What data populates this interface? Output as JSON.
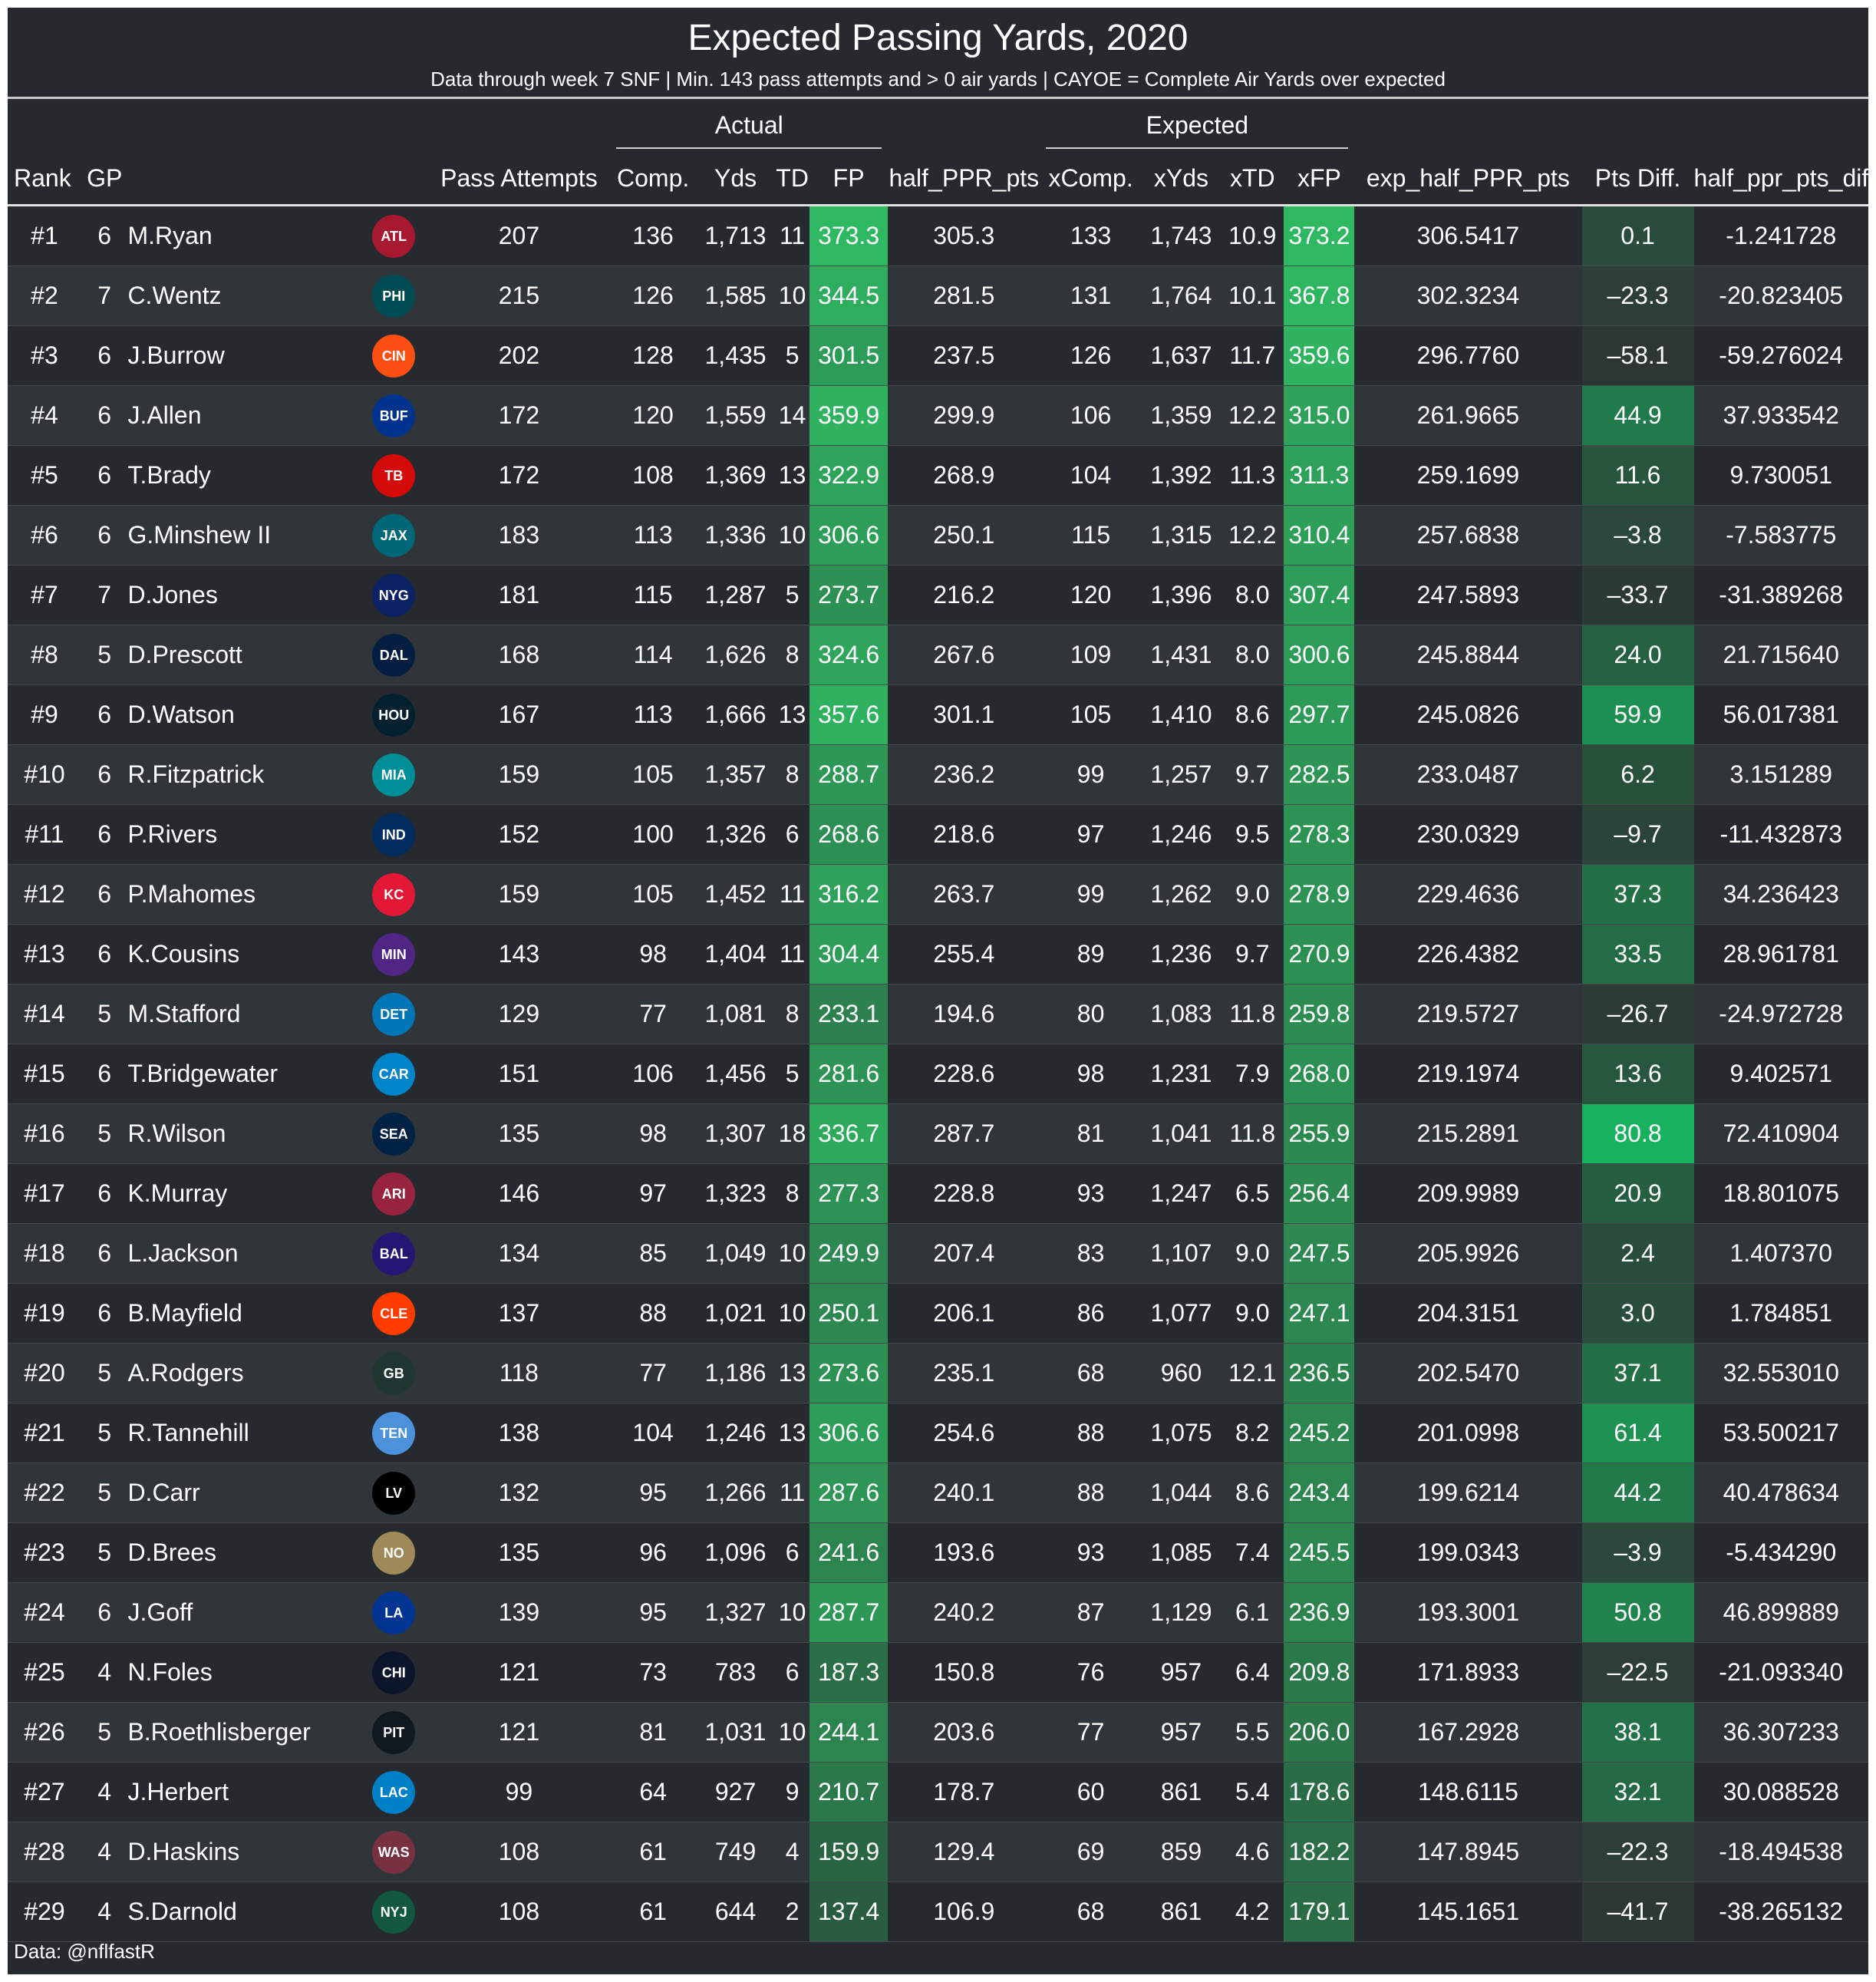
{
  "title": "Expected Passing Yards, 2020",
  "subtitle": "Data through week 7 SNF | Min. 143 pass attempts and > 0 air yards | CAYOE = Complete Air Yards over expected",
  "caption": "Data: @nflfastR",
  "span_headers": {
    "actual": "Actual",
    "expected": "Expected"
  },
  "columns": {
    "rank": "Rank",
    "gp": "GP",
    "player": "",
    "team": "",
    "attempts": "Pass Attempts",
    "comp": "Comp.",
    "yds": "Yds",
    "td": "TD",
    "fp": "FP",
    "half_ppr": "half_PPR_pts",
    "xcomp": "xComp.",
    "xyds": "xYds",
    "xtd": "xTD",
    "xfp": "xFP",
    "exp_half_ppr": "exp_half_PPR_pts",
    "pts_diff": "Pts Diff.",
    "half_ppr_diff": "half_ppr_pts_diff"
  },
  "colors": {
    "background": "#262a2e",
    "band": "#30353a",
    "fp_high": "#2fb862",
    "fp_low": "#262a2e",
    "diff_high": "#18b25e",
    "diff_low": "#2d3633"
  },
  "rows": [
    {
      "rank": "#1",
      "gp": "6",
      "player": "M.Ryan",
      "team": "atlanta-falcons-logo",
      "team_abbr": "ATL",
      "logo_color": "#a71930",
      "attempts": "207",
      "comp": "136",
      "yds": "1,713",
      "td": "11",
      "fp": "373.3",
      "half_ppr": "305.3",
      "xcomp": "133",
      "xyds": "1,743",
      "xtd": "10.9",
      "xfp": "373.2",
      "exp_half_ppr": "306.5417",
      "pts_diff": "0.1",
      "half_ppr_diff": "-1.241728"
    },
    {
      "rank": "#2",
      "gp": "7",
      "player": "C.Wentz",
      "team": "philadelphia-eagles-logo",
      "team_abbr": "PHI",
      "logo_color": "#004c54",
      "attempts": "215",
      "comp": "126",
      "yds": "1,585",
      "td": "10",
      "fp": "344.5",
      "half_ppr": "281.5",
      "xcomp": "131",
      "xyds": "1,764",
      "xtd": "10.1",
      "xfp": "367.8",
      "exp_half_ppr": "302.3234",
      "pts_diff": "–23.3",
      "half_ppr_diff": "-20.823405"
    },
    {
      "rank": "#3",
      "gp": "6",
      "player": "J.Burrow",
      "team": "cincinnati-bengals-logo",
      "team_abbr": "CIN",
      "logo_color": "#fb4f14",
      "attempts": "202",
      "comp": "128",
      "yds": "1,435",
      "td": "5",
      "fp": "301.5",
      "half_ppr": "237.5",
      "xcomp": "126",
      "xyds": "1,637",
      "xtd": "11.7",
      "xfp": "359.6",
      "exp_half_ppr": "296.7760",
      "pts_diff": "–58.1",
      "half_ppr_diff": "-59.276024"
    },
    {
      "rank": "#4",
      "gp": "6",
      "player": "J.Allen",
      "team": "buffalo-bills-logo",
      "team_abbr": "BUF",
      "logo_color": "#00338d",
      "attempts": "172",
      "comp": "120",
      "yds": "1,559",
      "td": "14",
      "fp": "359.9",
      "half_ppr": "299.9",
      "xcomp": "106",
      "xyds": "1,359",
      "xtd": "12.2",
      "xfp": "315.0",
      "exp_half_ppr": "261.9665",
      "pts_diff": "44.9",
      "half_ppr_diff": "37.933542"
    },
    {
      "rank": "#5",
      "gp": "6",
      "player": "T.Brady",
      "team": "tampa-bay-buccaneers-logo",
      "team_abbr": "TB",
      "logo_color": "#d50a0a",
      "attempts": "172",
      "comp": "108",
      "yds": "1,369",
      "td": "13",
      "fp": "322.9",
      "half_ppr": "268.9",
      "xcomp": "104",
      "xyds": "1,392",
      "xtd": "11.3",
      "xfp": "311.3",
      "exp_half_ppr": "259.1699",
      "pts_diff": "11.6",
      "half_ppr_diff": "9.730051"
    },
    {
      "rank": "#6",
      "gp": "6",
      "player": "G.Minshew II",
      "team": "jacksonville-jaguars-logo",
      "team_abbr": "JAX",
      "logo_color": "#006778",
      "attempts": "183",
      "comp": "113",
      "yds": "1,336",
      "td": "10",
      "fp": "306.6",
      "half_ppr": "250.1",
      "xcomp": "115",
      "xyds": "1,315",
      "xtd": "12.2",
      "xfp": "310.4",
      "exp_half_ppr": "257.6838",
      "pts_diff": "–3.8",
      "half_ppr_diff": "-7.583775"
    },
    {
      "rank": "#7",
      "gp": "7",
      "player": "D.Jones",
      "team": "new-york-giants-logo",
      "team_abbr": "NYG",
      "logo_color": "#0b2265",
      "attempts": "181",
      "comp": "115",
      "yds": "1,287",
      "td": "5",
      "fp": "273.7",
      "half_ppr": "216.2",
      "xcomp": "120",
      "xyds": "1,396",
      "xtd": "8.0",
      "xfp": "307.4",
      "exp_half_ppr": "247.5893",
      "pts_diff": "–33.7",
      "half_ppr_diff": "-31.389268"
    },
    {
      "rank": "#8",
      "gp": "5",
      "player": "D.Prescott",
      "team": "dallas-cowboys-logo",
      "team_abbr": "DAL",
      "logo_color": "#041e42",
      "attempts": "168",
      "comp": "114",
      "yds": "1,626",
      "td": "8",
      "fp": "324.6",
      "half_ppr": "267.6",
      "xcomp": "109",
      "xyds": "1,431",
      "xtd": "8.0",
      "xfp": "300.6",
      "exp_half_ppr": "245.8844",
      "pts_diff": "24.0",
      "half_ppr_diff": "21.715640"
    },
    {
      "rank": "#9",
      "gp": "6",
      "player": "D.Watson",
      "team": "houston-texans-logo",
      "team_abbr": "HOU",
      "logo_color": "#03202f",
      "attempts": "167",
      "comp": "113",
      "yds": "1,666",
      "td": "13",
      "fp": "357.6",
      "half_ppr": "301.1",
      "xcomp": "105",
      "xyds": "1,410",
      "xtd": "8.6",
      "xfp": "297.7",
      "exp_half_ppr": "245.0826",
      "pts_diff": "59.9",
      "half_ppr_diff": "56.017381"
    },
    {
      "rank": "#10",
      "gp": "6",
      "player": "R.Fitzpatrick",
      "team": "miami-dolphins-logo",
      "team_abbr": "MIA",
      "logo_color": "#008e97",
      "attempts": "159",
      "comp": "105",
      "yds": "1,357",
      "td": "8",
      "fp": "288.7",
      "half_ppr": "236.2",
      "xcomp": "99",
      "xyds": "1,257",
      "xtd": "9.7",
      "xfp": "282.5",
      "exp_half_ppr": "233.0487",
      "pts_diff": "6.2",
      "half_ppr_diff": "3.151289"
    },
    {
      "rank": "#11",
      "gp": "6",
      "player": "P.Rivers",
      "team": "indianapolis-colts-logo",
      "team_abbr": "IND",
      "logo_color": "#002c5f",
      "attempts": "152",
      "comp": "100",
      "yds": "1,326",
      "td": "6",
      "fp": "268.6",
      "half_ppr": "218.6",
      "xcomp": "97",
      "xyds": "1,246",
      "xtd": "9.5",
      "xfp": "278.3",
      "exp_half_ppr": "230.0329",
      "pts_diff": "–9.7",
      "half_ppr_diff": "-11.432873"
    },
    {
      "rank": "#12",
      "gp": "6",
      "player": "P.Mahomes",
      "team": "kansas-city-chiefs-logo",
      "team_abbr": "KC",
      "logo_color": "#e31837",
      "attempts": "159",
      "comp": "105",
      "yds": "1,452",
      "td": "11",
      "fp": "316.2",
      "half_ppr": "263.7",
      "xcomp": "99",
      "xyds": "1,262",
      "xtd": "9.0",
      "xfp": "278.9",
      "exp_half_ppr": "229.4636",
      "pts_diff": "37.3",
      "half_ppr_diff": "34.236423"
    },
    {
      "rank": "#13",
      "gp": "6",
      "player": "K.Cousins",
      "team": "minnesota-vikings-logo",
      "team_abbr": "MIN",
      "logo_color": "#4f2683",
      "attempts": "143",
      "comp": "98",
      "yds": "1,404",
      "td": "11",
      "fp": "304.4",
      "half_ppr": "255.4",
      "xcomp": "89",
      "xyds": "1,236",
      "xtd": "9.7",
      "xfp": "270.9",
      "exp_half_ppr": "226.4382",
      "pts_diff": "33.5",
      "half_ppr_diff": "28.961781"
    },
    {
      "rank": "#14",
      "gp": "5",
      "player": "M.Stafford",
      "team": "detroit-lions-logo",
      "team_abbr": "DET",
      "logo_color": "#0076b6",
      "attempts": "129",
      "comp": "77",
      "yds": "1,081",
      "td": "8",
      "fp": "233.1",
      "half_ppr": "194.6",
      "xcomp": "80",
      "xyds": "1,083",
      "xtd": "11.8",
      "xfp": "259.8",
      "exp_half_ppr": "219.5727",
      "pts_diff": "–26.7",
      "half_ppr_diff": "-24.972728"
    },
    {
      "rank": "#15",
      "gp": "6",
      "player": "T.Bridgewater",
      "team": "carolina-panthers-logo",
      "team_abbr": "CAR",
      "logo_color": "#0085ca",
      "attempts": "151",
      "comp": "106",
      "yds": "1,456",
      "td": "5",
      "fp": "281.6",
      "half_ppr": "228.6",
      "xcomp": "98",
      "xyds": "1,231",
      "xtd": "7.9",
      "xfp": "268.0",
      "exp_half_ppr": "219.1974",
      "pts_diff": "13.6",
      "half_ppr_diff": "9.402571"
    },
    {
      "rank": "#16",
      "gp": "5",
      "player": "R.Wilson",
      "team": "seattle-seahawks-logo",
      "team_abbr": "SEA",
      "logo_color": "#002244",
      "attempts": "135",
      "comp": "98",
      "yds": "1,307",
      "td": "18",
      "fp": "336.7",
      "half_ppr": "287.7",
      "xcomp": "81",
      "xyds": "1,041",
      "xtd": "11.8",
      "xfp": "255.9",
      "exp_half_ppr": "215.2891",
      "pts_diff": "80.8",
      "half_ppr_diff": "72.410904"
    },
    {
      "rank": "#17",
      "gp": "6",
      "player": "K.Murray",
      "team": "arizona-cardinals-logo",
      "team_abbr": "ARI",
      "logo_color": "#97233f",
      "attempts": "146",
      "comp": "97",
      "yds": "1,323",
      "td": "8",
      "fp": "277.3",
      "half_ppr": "228.8",
      "xcomp": "93",
      "xyds": "1,247",
      "xtd": "6.5",
      "xfp": "256.4",
      "exp_half_ppr": "209.9989",
      "pts_diff": "20.9",
      "half_ppr_diff": "18.801075"
    },
    {
      "rank": "#18",
      "gp": "6",
      "player": "L.Jackson",
      "team": "baltimore-ravens-logo",
      "team_abbr": "BAL",
      "logo_color": "#241773",
      "attempts": "134",
      "comp": "85",
      "yds": "1,049",
      "td": "10",
      "fp": "249.9",
      "half_ppr": "207.4",
      "xcomp": "83",
      "xyds": "1,107",
      "xtd": "9.0",
      "xfp": "247.5",
      "exp_half_ppr": "205.9926",
      "pts_diff": "2.4",
      "half_ppr_diff": "1.407370"
    },
    {
      "rank": "#19",
      "gp": "6",
      "player": "B.Mayfield",
      "team": "cleveland-browns-logo",
      "team_abbr": "CLE",
      "logo_color": "#ff3c00",
      "attempts": "137",
      "comp": "88",
      "yds": "1,021",
      "td": "10",
      "fp": "250.1",
      "half_ppr": "206.1",
      "xcomp": "86",
      "xyds": "1,077",
      "xtd": "9.0",
      "xfp": "247.1",
      "exp_half_ppr": "204.3151",
      "pts_diff": "3.0",
      "half_ppr_diff": "1.784851"
    },
    {
      "rank": "#20",
      "gp": "5",
      "player": "A.Rodgers",
      "team": "green-bay-packers-logo",
      "team_abbr": "GB",
      "logo_color": "#203731",
      "attempts": "118",
      "comp": "77",
      "yds": "1,186",
      "td": "13",
      "fp": "273.6",
      "half_ppr": "235.1",
      "xcomp": "68",
      "xyds": "960",
      "xtd": "12.1",
      "xfp": "236.5",
      "exp_half_ppr": "202.5470",
      "pts_diff": "37.1",
      "half_ppr_diff": "32.553010"
    },
    {
      "rank": "#21",
      "gp": "5",
      "player": "R.Tannehill",
      "team": "tennessee-titans-logo",
      "team_abbr": "TEN",
      "logo_color": "#4b92db",
      "attempts": "138",
      "comp": "104",
      "yds": "1,246",
      "td": "13",
      "fp": "306.6",
      "half_ppr": "254.6",
      "xcomp": "88",
      "xyds": "1,075",
      "xtd": "8.2",
      "xfp": "245.2",
      "exp_half_ppr": "201.0998",
      "pts_diff": "61.4",
      "half_ppr_diff": "53.500217"
    },
    {
      "rank": "#22",
      "gp": "5",
      "player": "D.Carr",
      "team": "las-vegas-raiders-logo",
      "team_abbr": "LV",
      "logo_color": "#000000",
      "attempts": "132",
      "comp": "95",
      "yds": "1,266",
      "td": "11",
      "fp": "287.6",
      "half_ppr": "240.1",
      "xcomp": "88",
      "xyds": "1,044",
      "xtd": "8.6",
      "xfp": "243.4",
      "exp_half_ppr": "199.6214",
      "pts_diff": "44.2",
      "half_ppr_diff": "40.478634"
    },
    {
      "rank": "#23",
      "gp": "5",
      "player": "D.Brees",
      "team": "new-orleans-saints-logo",
      "team_abbr": "NO",
      "logo_color": "#9f8958",
      "attempts": "135",
      "comp": "96",
      "yds": "1,096",
      "td": "6",
      "fp": "241.6",
      "half_ppr": "193.6",
      "xcomp": "93",
      "xyds": "1,085",
      "xtd": "7.4",
      "xfp": "245.5",
      "exp_half_ppr": "199.0343",
      "pts_diff": "–3.9",
      "half_ppr_diff": "-5.434290"
    },
    {
      "rank": "#24",
      "gp": "6",
      "player": "J.Goff",
      "team": "los-angeles-rams-logo",
      "team_abbr": "LA",
      "logo_color": "#003594",
      "attempts": "139",
      "comp": "95",
      "yds": "1,327",
      "td": "10",
      "fp": "287.7",
      "half_ppr": "240.2",
      "xcomp": "87",
      "xyds": "1,129",
      "xtd": "6.1",
      "xfp": "236.9",
      "exp_half_ppr": "193.3001",
      "pts_diff": "50.8",
      "half_ppr_diff": "46.899889"
    },
    {
      "rank": "#25",
      "gp": "4",
      "player": "N.Foles",
      "team": "chicago-bears-logo",
      "team_abbr": "CHI",
      "logo_color": "#0b162a",
      "attempts": "121",
      "comp": "73",
      "yds": "783",
      "td": "6",
      "fp": "187.3",
      "half_ppr": "150.8",
      "xcomp": "76",
      "xyds": "957",
      "xtd": "6.4",
      "xfp": "209.8",
      "exp_half_ppr": "171.8933",
      "pts_diff": "–22.5",
      "half_ppr_diff": "-21.093340"
    },
    {
      "rank": "#26",
      "gp": "5",
      "player": "B.Roethlisberger",
      "team": "pittsburgh-steelers-logo",
      "team_abbr": "PIT",
      "logo_color": "#101820",
      "attempts": "121",
      "comp": "81",
      "yds": "1,031",
      "td": "10",
      "fp": "244.1",
      "half_ppr": "203.6",
      "xcomp": "77",
      "xyds": "957",
      "xtd": "5.5",
      "xfp": "206.0",
      "exp_half_ppr": "167.2928",
      "pts_diff": "38.1",
      "half_ppr_diff": "36.307233"
    },
    {
      "rank": "#27",
      "gp": "4",
      "player": "J.Herbert",
      "team": "los-angeles-chargers-logo",
      "team_abbr": "LAC",
      "logo_color": "#0080c6",
      "attempts": "99",
      "comp": "64",
      "yds": "927",
      "td": "9",
      "fp": "210.7",
      "half_ppr": "178.7",
      "xcomp": "60",
      "xyds": "861",
      "xtd": "5.4",
      "xfp": "178.6",
      "exp_half_ppr": "148.6115",
      "pts_diff": "32.1",
      "half_ppr_diff": "30.088528"
    },
    {
      "rank": "#28",
      "gp": "4",
      "player": "D.Haskins",
      "team": "washington-logo",
      "team_abbr": "WAS",
      "logo_color": "#773141",
      "attempts": "108",
      "comp": "61",
      "yds": "749",
      "td": "4",
      "fp": "159.9",
      "half_ppr": "129.4",
      "xcomp": "69",
      "xyds": "859",
      "xtd": "4.6",
      "xfp": "182.2",
      "exp_half_ppr": "147.8945",
      "pts_diff": "–22.3",
      "half_ppr_diff": "-18.494538"
    },
    {
      "rank": "#29",
      "gp": "4",
      "player": "S.Darnold",
      "team": "new-york-jets-logo",
      "team_abbr": "NYJ",
      "logo_color": "#125740",
      "attempts": "108",
      "comp": "61",
      "yds": "644",
      "td": "2",
      "fp": "137.4",
      "half_ppr": "106.9",
      "xcomp": "68",
      "xyds": "861",
      "xtd": "4.2",
      "xfp": "179.1",
      "exp_half_ppr": "145.1651",
      "pts_diff": "–41.7",
      "half_ppr_diff": "-38.265132"
    }
  ]
}
